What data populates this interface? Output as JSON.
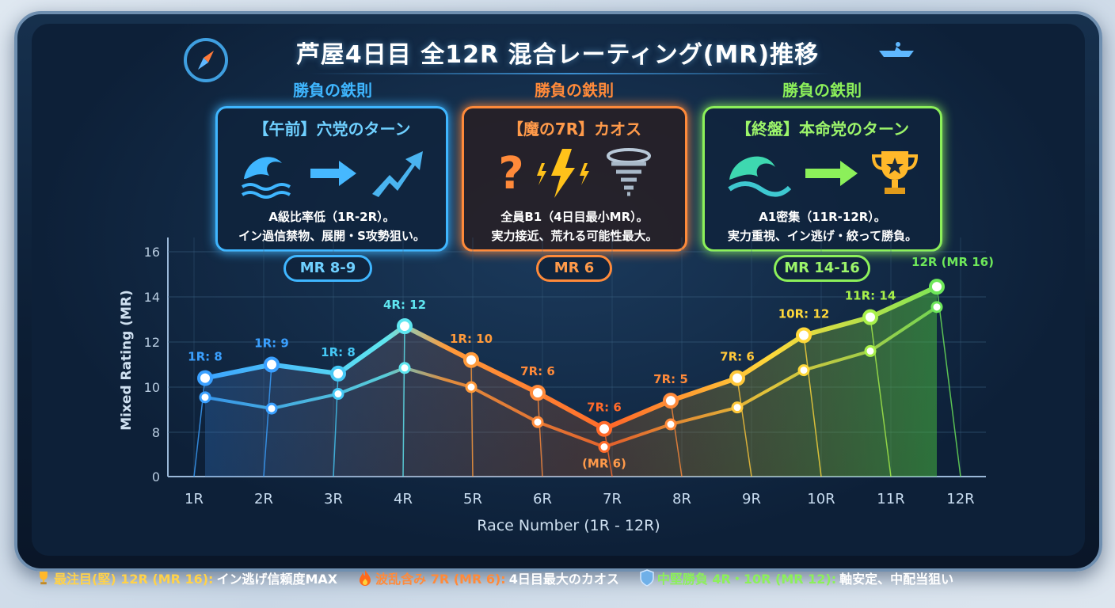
{
  "title": "芦屋4日目 全12R 混合レーティング(MR)推移",
  "icons": {
    "top_left": "compass-icon",
    "top_right": "boat-icon"
  },
  "cards": [
    {
      "heading": "勝負の鉄則",
      "title": "【午前】穴党のターン",
      "desc1": "A級比率低（1R-2R）。",
      "desc2": "イン過信禁物、展開・S攻勢狙い。",
      "pill": "MR 8-9",
      "color": "#3fb6ff",
      "icons": [
        "wave-icon",
        "arrow-right-icon",
        "trend-up-icon"
      ]
    },
    {
      "heading": "勝負の鉄則",
      "title": "【魔の7R】カオス",
      "desc1": "全員B1（4日目最小MR）。",
      "desc2": "実力接近、荒れる可能性最大。",
      "pill": "MR 6",
      "color": "#ff8a3a",
      "icons": [
        "question-icon",
        "lightning-icon",
        "tornado-icon"
      ]
    },
    {
      "heading": "勝負の鉄則",
      "title": "【終盤】本命党のターン",
      "desc1": "A1密集（11R-12R）。",
      "desc2": "実力重視、イン逃げ・絞って勝負。",
      "pill": "MR 14-16",
      "color": "#8cf05a",
      "icons": [
        "wave-icon",
        "arrow-right-icon",
        "trophy-icon"
      ]
    }
  ],
  "chart_data": {
    "type": "line",
    "xlabel": "Race Number (1R - 12R)",
    "ylabel": "Mixed Rating (MR)",
    "categories": [
      "1R",
      "2R",
      "3R",
      "4R",
      "5R",
      "6R",
      "7R",
      "8R",
      "9R",
      "10R",
      "11R",
      "12R"
    ],
    "yticks": [
      0,
      8,
      10,
      12,
      14,
      16
    ],
    "ylim": [
      0,
      16
    ],
    "grid": true,
    "series": [
      {
        "values": [
          10.4,
          11.0,
          10.6,
          12.7,
          11.2,
          9.75,
          8.15,
          9.4,
          10.4,
          12.3,
          13.1,
          14.45
        ]
      },
      {
        "values": [
          9.55,
          9.05,
          9.7,
          10.85,
          10.0,
          8.45,
          7.35,
          8.35,
          9.1,
          10.75,
          11.6,
          13.55
        ]
      }
    ],
    "data_labels": [
      "1R: 8",
      "1R: 9",
      "1R: 8",
      "4R: 12",
      "1R: 10",
      "7R: 6",
      "7R: 6",
      "7R: 5",
      "7R: 6",
      "10R: 12",
      "11R: 14",
      "12R (MR 16)"
    ],
    "annotation": "(MR 6)",
    "colors": [
      "#3aa0ff",
      "#3aa0ff",
      "#45c8f5",
      "#5fe6f0",
      "#ff9a3a",
      "#ff8a3a",
      "#ff6a2a",
      "#ff8a3a",
      "#ffc83a",
      "#ffd83a",
      "#a8f04a",
      "#6ee85a"
    ]
  },
  "footer": [
    {
      "icon": "trophy-icon",
      "highlight": "最注目(堅) 12R (MR 16):",
      "text": " イン逃げ信頼度MAX",
      "color": "#ffd24a"
    },
    {
      "icon": "fire-icon",
      "highlight": "波乱含み 7R (MR 6):",
      "text": " 4日目最大のカオス",
      "color": "#ff8a3a"
    },
    {
      "icon": "shield-icon",
      "highlight": "中堅勝負 4R・10R (MR 12):",
      "text": " 軸安定、中配当狙い",
      "color": "#8cf05a"
    }
  ]
}
